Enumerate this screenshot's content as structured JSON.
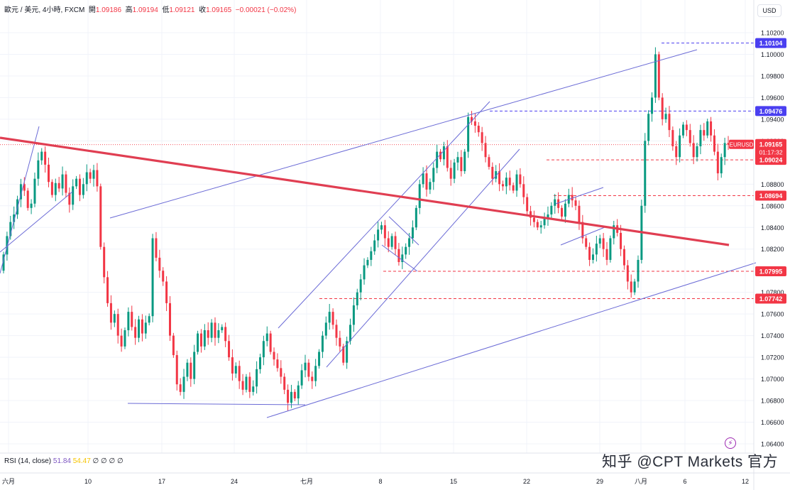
{
  "header": {
    "symbol": "歐元 / 美元, 4小時, FXCM",
    "open_label": "開",
    "open": "1.09186",
    "high_label": "高",
    "high": "1.09194",
    "low_label": "低",
    "low": "1.09121",
    "close_label": "收",
    "close": "1.09165",
    "change": "−0.00021 (−0.02%)"
  },
  "currency_button": "USD",
  "indicator": {
    "label": "RSI (14, close)",
    "value1": "51.84",
    "value2": "54.47",
    "icons": "∅ ∅ ∅ ∅"
  },
  "watermark": "知乎 @CPT Markets 官方",
  "colors": {
    "up": "#089981",
    "down": "#f23645",
    "trendline": "#6b6bd6",
    "main_trendline": "#e03e52",
    "grid": "#f0f3fa",
    "price_tag_blue": "#4a3ff0",
    "price_tag_red": "#f23645"
  },
  "chart_data": {
    "type": "candlestick",
    "title": "歐元 / 美元, 4小時, FXCM",
    "y_ticks": [
      "1.10200",
      "1.10000",
      "1.09800",
      "1.09600",
      "1.09400",
      "1.09200",
      "1.08800",
      "1.08600",
      "1.08400",
      "1.08200",
      "1.07800",
      "1.07600",
      "1.07400",
      "1.07200",
      "1.07000",
      "1.06800",
      "1.06600",
      "1.06400"
    ],
    "x_ticks": [
      "六月",
      "10",
      "17",
      "24",
      "七月",
      "8",
      "15",
      "22",
      "29",
      "八月",
      "6",
      "12"
    ],
    "ylim": [
      1.0628,
      1.103
    ],
    "price_tags": [
      {
        "value": "1.10104",
        "style": "blue"
      },
      {
        "value": "1.09476",
        "style": "blue"
      },
      {
        "value": "1.09165",
        "style": "red",
        "label": "EURUSD",
        "timer": "01:17:32"
      },
      {
        "value": "1.09024",
        "style": "red"
      },
      {
        "value": "1.08694",
        "style": "red"
      },
      {
        "value": "1.07995",
        "style": "red"
      },
      {
        "value": "1.07742",
        "style": "red"
      }
    ],
    "closes": [
      1.0815,
      1.0832,
      1.0845,
      1.0852,
      1.0866,
      1.088,
      1.0874,
      1.0858,
      1.0862,
      1.0885,
      1.0902,
      1.091,
      1.0898,
      1.0882,
      1.087,
      1.0881,
      1.0876,
      1.0889,
      1.0872,
      1.0861,
      1.0878,
      1.0885,
      1.087,
      1.088,
      1.0891,
      1.0885,
      1.0893,
      1.0878,
      1.0822,
      1.0794,
      1.077,
      1.0752,
      1.076,
      1.074,
      1.073,
      1.0745,
      1.0762,
      1.0748,
      1.0738,
      1.0755,
      1.0742,
      1.0752,
      1.0758,
      1.083,
      1.0812,
      1.08,
      1.079,
      1.077,
      1.074,
      1.0722,
      1.0695,
      1.0688,
      1.0702,
      1.0715,
      1.07,
      1.0725,
      1.0742,
      1.073,
      1.0745,
      1.0738,
      1.0752,
      1.0738,
      1.0745,
      1.0748,
      1.0735,
      1.072,
      1.0705,
      1.0712,
      1.0698,
      1.069,
      1.0702,
      1.0688,
      1.0693,
      1.0709,
      1.072,
      1.0735,
      1.0742,
      1.0725,
      1.0718,
      1.071,
      1.0702,
      1.069,
      1.0678,
      1.0688,
      1.0682,
      1.0694,
      1.0708,
      1.0715,
      1.0702,
      1.0698,
      1.0712,
      1.0725,
      1.074,
      1.0752,
      1.0762,
      1.075,
      1.0738,
      1.073,
      1.0715,
      1.0735,
      1.075,
      1.0768,
      1.078,
      1.0792,
      1.0805,
      1.081,
      1.0818,
      1.0828,
      1.0838,
      1.0842,
      1.083,
      1.0822,
      1.0832,
      1.082,
      1.0808,
      1.0815,
      1.0822,
      1.083,
      1.084,
      1.0858,
      1.088,
      1.089,
      1.0875,
      1.0882,
      1.0895,
      1.091,
      1.0903,
      1.0915,
      1.0895,
      1.0885,
      1.09,
      1.0905,
      1.0892,
      1.091,
      1.0942,
      1.0938,
      1.0934,
      1.0928,
      1.0918,
      1.0905,
      1.0896,
      1.0885,
      1.0892,
      1.088,
      1.0878,
      1.0886,
      1.0879,
      1.0874,
      1.0889,
      1.088,
      1.0868,
      1.0855,
      1.0849,
      1.0845,
      1.084,
      1.0842,
      1.0848,
      1.0852,
      1.086,
      1.0866,
      1.0858,
      1.085,
      1.0862,
      1.087,
      1.0865,
      1.086,
      1.0845,
      1.083,
      1.0822,
      1.081,
      1.0815,
      1.0825,
      1.083,
      1.082,
      1.081,
      1.083,
      1.0842,
      1.0835,
      1.082,
      1.0805,
      1.079,
      1.078,
      1.079,
      1.081,
      1.086,
      1.092,
      1.0945,
      1.096,
      1.1,
      1.096,
      1.094,
      1.0945,
      1.093,
      1.0915,
      1.0905,
      1.0925,
      1.0935,
      1.093,
      1.0918,
      1.0905,
      1.0915,
      1.093,
      1.0925,
      1.0938,
      1.0925,
      1.091,
      1.089,
      1.0905,
      1.0918,
      1.09165
    ]
  }
}
